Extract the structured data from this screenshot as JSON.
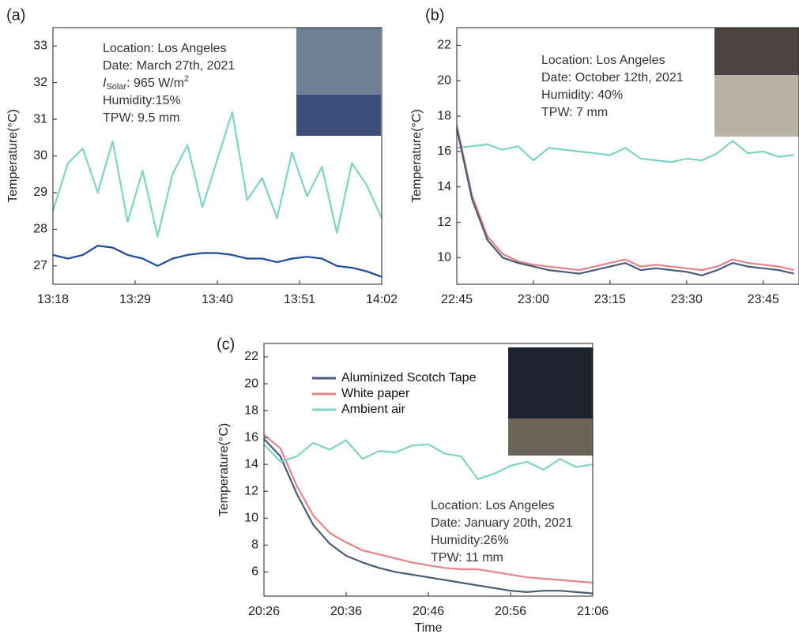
{
  "chart_data": [
    {
      "type": "line",
      "label": "(a)",
      "ylabel": "Temperature(°C)",
      "annotations": [
        "Location: Los Angeles",
        "Date: March 27th, 2021",
        {
          "symbol": "I",
          "subscript": "Solar",
          "text": ": 965 W/m",
          "superscript": "2"
        },
        "Humidity:15%",
        "TPW: 9.5 mm"
      ],
      "x": [
        "13:18",
        "13:20",
        "13:22",
        "13:24",
        "13:26",
        "13:28",
        "13:30",
        "13:32",
        "13:34",
        "13:36",
        "13:38",
        "13:40",
        "13:42",
        "13:44",
        "13:46",
        "13:48",
        "13:50",
        "13:52",
        "13:54",
        "13:56",
        "13:58",
        "14:00",
        "14:02"
      ],
      "xlim": [
        "13:18",
        "14:02"
      ],
      "xticks": [
        "13:18",
        "13:29",
        "13:40",
        "13:51",
        "14:02"
      ],
      "ylim": [
        26.5,
        33.5
      ],
      "yticks": [
        27,
        28,
        29,
        30,
        31,
        32,
        33
      ],
      "series": [
        {
          "color": "#7fd3c4",
          "values": [
            28.5,
            29.8,
            30.2,
            29.0,
            30.4,
            28.2,
            29.6,
            27.8,
            29.5,
            30.3,
            28.6,
            29.9,
            31.2,
            28.8,
            29.4,
            28.3,
            30.1,
            28.9,
            29.7,
            27.9,
            29.8,
            29.2,
            28.3
          ]
        },
        {
          "color": "#1d4a9a",
          "values": [
            27.3,
            27.2,
            27.3,
            27.55,
            27.5,
            27.3,
            27.2,
            27.0,
            27.2,
            27.3,
            27.35,
            27.35,
            27.3,
            27.2,
            27.2,
            27.1,
            27.2,
            27.25,
            27.2,
            27.0,
            26.95,
            26.85,
            26.7
          ]
        }
      ]
    },
    {
      "type": "line",
      "label": "(b)",
      "ylabel": "Temperature(°C)",
      "annotations": [
        "Location: Los Angeles",
        "Date: October 12th, 2021",
        "Humidity: 40%",
        "TPW: 7 mm"
      ],
      "x": [
        "22:45",
        "22:48",
        "22:51",
        "22:54",
        "22:57",
        "23:00",
        "23:03",
        "23:06",
        "23:09",
        "23:12",
        "23:15",
        "23:18",
        "23:21",
        "23:24",
        "23:27",
        "23:30",
        "23:33",
        "23:36",
        "23:39",
        "23:42",
        "23:45",
        "23:48",
        "23:51"
      ],
      "xlim": [
        "22:45",
        "23:52"
      ],
      "xticks": [
        "22:45",
        "23:00",
        "23:15",
        "23:30",
        "23:45"
      ],
      "ylim": [
        8.5,
        23
      ],
      "yticks": [
        10,
        12,
        14,
        16,
        18,
        20,
        22
      ],
      "series": [
        {
          "color": "#7fd3c4",
          "values": [
            16.2,
            16.3,
            16.4,
            16.1,
            16.3,
            15.5,
            16.2,
            16.1,
            16.0,
            15.9,
            15.8,
            16.2,
            15.6,
            15.5,
            15.4,
            15.6,
            15.5,
            15.9,
            16.6,
            15.9,
            16.0,
            15.7,
            15.8
          ]
        },
        {
          "color": "#e3848a",
          "values": [
            17.5,
            13.5,
            11.2,
            10.2,
            9.8,
            9.6,
            9.5,
            9.4,
            9.3,
            9.5,
            9.7,
            9.9,
            9.5,
            9.6,
            9.5,
            9.4,
            9.3,
            9.5,
            9.9,
            9.7,
            9.6,
            9.5,
            9.3
          ]
        },
        {
          "color": "#4a5a78",
          "values": [
            17.3,
            13.3,
            11.0,
            10.0,
            9.7,
            9.5,
            9.3,
            9.2,
            9.1,
            9.3,
            9.5,
            9.7,
            9.3,
            9.4,
            9.3,
            9.2,
            9.0,
            9.3,
            9.7,
            9.5,
            9.4,
            9.3,
            9.1
          ]
        }
      ]
    },
    {
      "type": "line",
      "label": "(c)",
      "ylabel": "Temperature(°C)",
      "xlabel": "Time",
      "annotations": [
        "Location: Los Angeles",
        "Date: January 20th, 2021",
        "Humidity:26%",
        "TPW: 11 mm"
      ],
      "x": [
        "20:26",
        "20:28",
        "20:30",
        "20:32",
        "20:34",
        "20:36",
        "20:38",
        "20:40",
        "20:42",
        "20:44",
        "20:46",
        "20:48",
        "20:50",
        "20:52",
        "20:54",
        "20:56",
        "20:58",
        "21:00",
        "21:02",
        "21:04",
        "21:06"
      ],
      "xlim": [
        "20:26",
        "21:06"
      ],
      "xticks": [
        "20:26",
        "20:36",
        "20:46",
        "20:56",
        "21:06"
      ],
      "ylim": [
        4.2,
        23
      ],
      "yticks": [
        6,
        8,
        10,
        12,
        14,
        16,
        18,
        20,
        22
      ],
      "series": [
        {
          "name": "Aluminized Scotch Tape",
          "color": "#4a5a78",
          "values": [
            15.9,
            14.6,
            11.8,
            9.5,
            8.1,
            7.2,
            6.7,
            6.3,
            6.0,
            5.8,
            5.6,
            5.4,
            5.2,
            5.0,
            4.8,
            4.6,
            4.5,
            4.6,
            4.6,
            4.5,
            4.4
          ]
        },
        {
          "name": "White paper",
          "color": "#e3848a",
          "values": [
            16.2,
            15.2,
            12.4,
            10.2,
            8.9,
            8.2,
            7.6,
            7.3,
            7.0,
            6.7,
            6.5,
            6.3,
            6.2,
            6.2,
            6.0,
            5.8,
            5.6,
            5.5,
            5.4,
            5.3,
            5.2
          ]
        },
        {
          "name": "Ambient air",
          "color": "#7fd3c4",
          "values": [
            15.5,
            14.2,
            14.6,
            15.6,
            15.1,
            15.8,
            14.4,
            15.0,
            14.9,
            15.4,
            15.5,
            14.8,
            14.6,
            12.9,
            13.3,
            13.9,
            14.2,
            13.6,
            14.4,
            13.8,
            14.0
          ]
        }
      ]
    }
  ]
}
